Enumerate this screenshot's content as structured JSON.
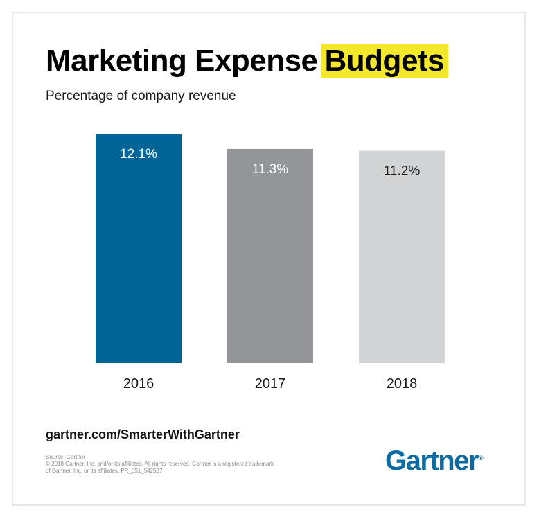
{
  "header": {
    "title_main": "Marketing Expense",
    "title_highlight": "Budgets",
    "subtitle": "Percentage of company revenue"
  },
  "chart_data": {
    "type": "bar",
    "title": "Marketing Expense Budgets",
    "subtitle": "Percentage of company revenue",
    "categories": [
      "2016",
      "2017",
      "2018"
    ],
    "values": [
      12.1,
      11.3,
      11.2
    ],
    "value_labels": [
      "12.1%",
      "11.3%",
      "11.2%"
    ],
    "bar_colors": [
      "#016496",
      "#939598",
      "#d1d3d4"
    ],
    "label_colors": [
      "#ffffff",
      "#ffffff",
      "#1a1a1a"
    ],
    "xlabel": "",
    "ylabel": "",
    "ylim": [
      0,
      12.1
    ],
    "grid": false,
    "legend": "none"
  },
  "footer": {
    "link": "gartner.com/SmarterWithGartner",
    "source_lines": [
      "Source: Gartner",
      "© 2018 Gartner, Inc. and/or its affiliates. All rights reserved. Gartner is a registered trademark",
      "of Gartner, Inc. or its affiliates. PR_051_542537"
    ],
    "logo_text": "Gartner",
    "logo_mark": "®",
    "logo_color": "#0a6aa1"
  }
}
